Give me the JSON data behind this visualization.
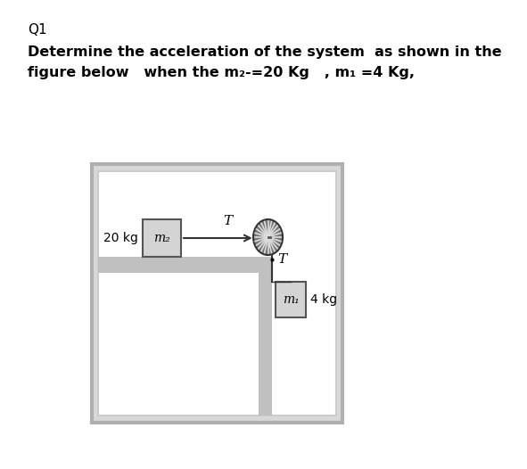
{
  "title_q": "Q1",
  "problem_text_line1": "Determine the acceleration of the system  as shown in the",
  "problem_text_line2": "figure below   when the m₂-=20 Kg   , m₁ =4 Kg,",
  "background_color": "#ffffff",
  "mass2_label": "m₂",
  "mass1_label": "m₁",
  "mass2_kg": "20 kg",
  "mass1_kg": "4 kg",
  "T_label": "T",
  "rope_color": "#333333",
  "surface_color": "#c0c0c0",
  "box_fill": "#d4d4d4",
  "box_edge": "#555555",
  "pulley_fill": "#888888",
  "outer_border_color": "#b0b0b0",
  "outer_fill": "#d8d8d8",
  "inner_fill": "#ffffff",
  "inner_border_color": "#cccccc"
}
